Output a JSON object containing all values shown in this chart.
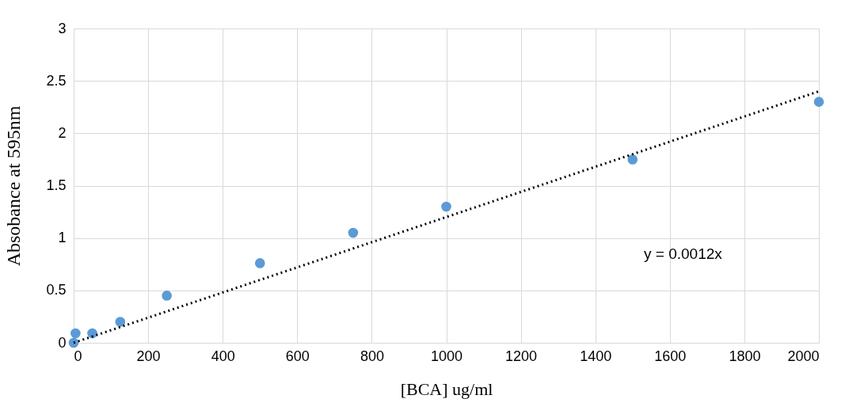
{
  "chart_data": {
    "type": "scatter",
    "xlabel": "[BCA] ug/ml",
    "ylabel": "Absobance at 595nm",
    "series": [
      {
        "color": "#5b9bd5",
        "marker": "circle",
        "x": [
          0,
          5,
          50,
          125,
          250,
          500,
          750,
          1000,
          1500,
          2000
        ],
        "values": [
          0,
          0.09,
          0.09,
          0.2,
          0.45,
          0.76,
          1.05,
          1.3,
          1.75,
          2.3
        ]
      },
      {
        "type": "line",
        "color": "#000000",
        "line_style": "dotted",
        "marker": "none",
        "x": [
          0,
          2000
        ],
        "values": [
          0,
          2.4
        ]
      }
    ],
    "annotations": [
      "y = 0.0012x"
    ],
    "xlim": [
      0,
      2000
    ],
    "xticks": [
      0,
      200,
      400,
      600,
      800,
      1000,
      1200,
      1400,
      1600,
      1800,
      2000
    ],
    "ylim": [
      0,
      3
    ],
    "yticks": [
      0,
      0.5,
      1,
      1.5,
      2,
      2.5,
      3
    ],
    "grid": true,
    "legend": false
  }
}
